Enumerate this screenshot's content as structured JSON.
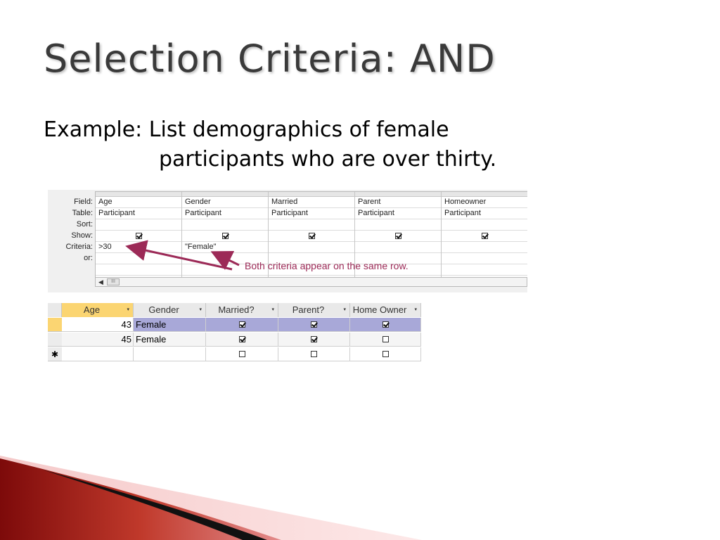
{
  "slide": {
    "title": "Selection Criteria:  AND",
    "example_line1": "Example:  List demographics of female",
    "example_line2": "participants who are over thirty."
  },
  "design_grid": {
    "row_labels": [
      "Field:",
      "Table:",
      "Sort:",
      "Show:",
      "Criteria:",
      "or:"
    ],
    "columns": [
      {
        "field": "Age",
        "table": "Participant",
        "sort": "",
        "show": true,
        "criteria": ">30",
        "or": ""
      },
      {
        "field": "Gender",
        "table": "Participant",
        "sort": "",
        "show": true,
        "criteria": "\"Female\"",
        "or": ""
      },
      {
        "field": "Married",
        "table": "Participant",
        "sort": "",
        "show": true,
        "criteria": "",
        "or": ""
      },
      {
        "field": "Parent",
        "table": "Participant",
        "sort": "",
        "show": true,
        "criteria": "",
        "or": ""
      },
      {
        "field": "Homeowner",
        "table": "Participant",
        "sort": "",
        "show": true,
        "criteria": "",
        "or": ""
      }
    ],
    "scroll_thumb_glyph": "III",
    "scroll_left_glyph": "◀"
  },
  "annotation": {
    "text": "Both criteria appear on the same row.",
    "color": "#9c2a57"
  },
  "datasheet": {
    "headers": [
      "Age",
      "Gender",
      "Married?",
      "Parent?",
      "Home Owner"
    ],
    "dropdown_glyph": "▾",
    "new_row_glyph": "✱",
    "rows": [
      {
        "age": "43",
        "gender": "Female",
        "married": true,
        "parent": true,
        "home_owner": true,
        "selected": true
      },
      {
        "age": "45",
        "gender": "Female",
        "married": true,
        "parent": true,
        "home_owner": false,
        "selected": false
      },
      {
        "age": "",
        "gender": "",
        "married": false,
        "parent": false,
        "home_owner": false,
        "selected": false,
        "new_record": true
      }
    ],
    "selected_row_color": "#a8a8d8",
    "selected_header_color": "#fbd572"
  },
  "colors": {
    "title": "#3a3a3a",
    "swoosh_dark": "#8b0000",
    "swoosh_light": "#e8a0a0"
  }
}
